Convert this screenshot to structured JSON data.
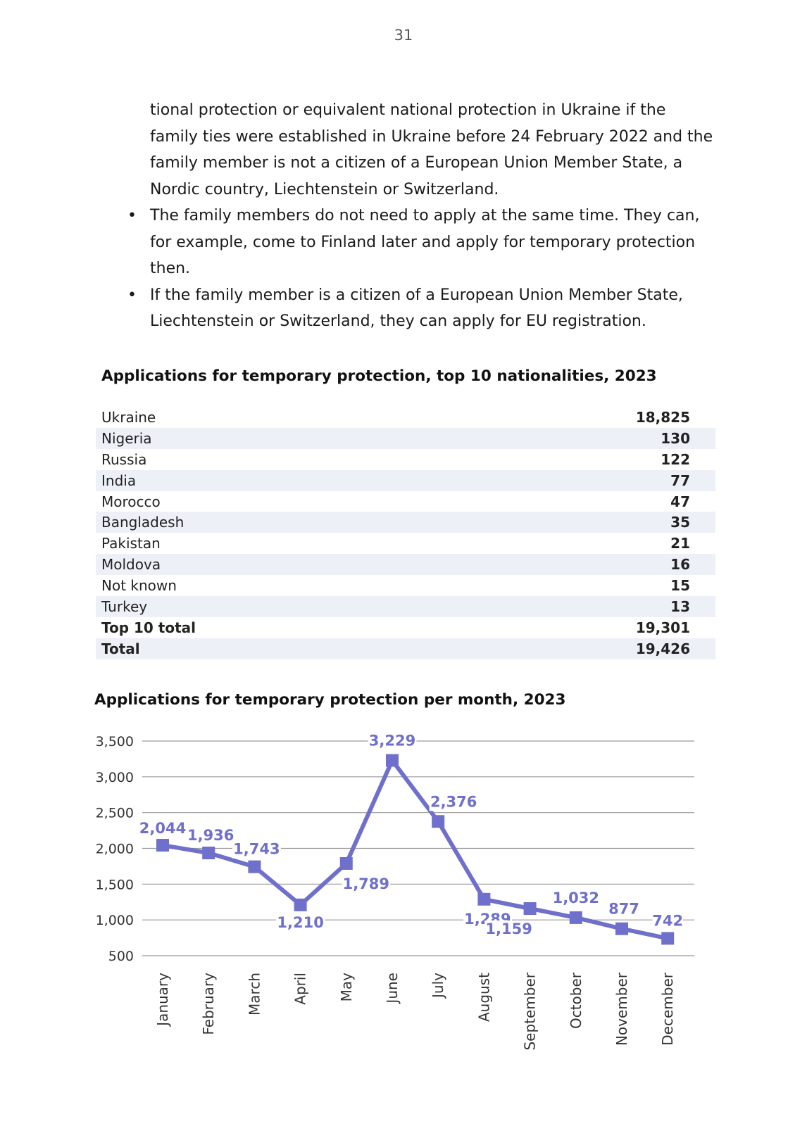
{
  "page_number": "31",
  "body": {
    "paragraph": "tional protection or equivalent national protection in Ukraine if the family ties were established in Ukraine before 24 February 2022 and the family member is not a citizen of a European Union Member State, a Nordic country, Liechtenstein or Switzerland.",
    "bullets": [
      "The family members do not need to apply at the same time. They can, for example, come to Finland later and apply for temporary protection then.",
      "If the family member is a citizen of a European Union Member State, Liechtenstein or Switzerland, they can apply for EU registration."
    ],
    "bullet_symbol": "•"
  },
  "table": {
    "title": "Applications for temporary protection, top 10 nationalities, 2023",
    "rows": [
      {
        "label": "Ukraine",
        "value": "18,825"
      },
      {
        "label": "Nigeria",
        "value": "130"
      },
      {
        "label": "Russia",
        "value": "122"
      },
      {
        "label": "India",
        "value": "77"
      },
      {
        "label": "Morocco",
        "value": "47"
      },
      {
        "label": "Bangladesh",
        "value": "35"
      },
      {
        "label": "Pakistan",
        "value": "21"
      },
      {
        "label": "Moldova",
        "value": "16"
      },
      {
        "label": "Not known",
        "value": "15"
      },
      {
        "label": "Turkey",
        "value": "13"
      }
    ],
    "top10_label": "Top 10 total",
    "top10_value": "19,301",
    "total_label": "Total",
    "total_value": "19,426",
    "shade_color": "#eef0f8"
  },
  "chart_title": "Applications for temporary protection per month, 2023",
  "chart_data": {
    "type": "line",
    "title": "Applications for temporary protection per month, 2023",
    "xlabel": "",
    "ylabel": "",
    "categories": [
      "January",
      "February",
      "March",
      "April",
      "May",
      "June",
      "July",
      "August",
      "September",
      "October",
      "November",
      "December"
    ],
    "values": [
      2044,
      1936,
      1743,
      1210,
      1789,
      3229,
      2376,
      1289,
      1159,
      1032,
      877,
      742
    ],
    "data_labels": [
      "2,044",
      "1,936",
      "1,743",
      "1,210",
      "1,789",
      "3,229",
      "2,376",
      "1,289",
      "1,159",
      "1,032",
      "877",
      "742"
    ],
    "yticks": [
      500,
      1000,
      1500,
      2000,
      2500,
      3000,
      3500
    ],
    "ytick_labels": [
      "500",
      "1,000",
      "1,500",
      "2,000",
      "2,500",
      "3,000",
      "3,500"
    ],
    "ylim": [
      500,
      3500
    ],
    "grid": true,
    "marker": "square",
    "line_color": "#6f6fcc",
    "label_color": "#6f6fcc",
    "grid_color": "#999999"
  }
}
